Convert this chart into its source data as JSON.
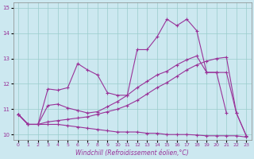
{
  "xlabel": "Windchill (Refroidissement éolien,°C)",
  "background_color": "#cce8f0",
  "line_color": "#993399",
  "grid_color": "#99cccc",
  "xlim": [
    -0.5,
    23.5
  ],
  "ylim": [
    9.8,
    15.2
  ],
  "xticks": [
    0,
    1,
    2,
    3,
    4,
    5,
    6,
    7,
    8,
    9,
    10,
    11,
    12,
    13,
    14,
    15,
    16,
    17,
    18,
    19,
    20,
    21,
    22,
    23
  ],
  "yticks": [
    10,
    11,
    12,
    13,
    14
  ],
  "ytick_extra": 15,
  "line1_x": [
    0,
    1,
    2,
    3,
    4,
    5,
    6,
    7,
    8,
    9,
    10,
    11,
    12,
    13,
    14,
    15,
    16,
    17,
    18,
    19,
    20,
    21
  ],
  "line1_y": [
    10.8,
    10.4,
    10.4,
    11.8,
    11.75,
    11.85,
    12.8,
    12.55,
    12.35,
    11.65,
    11.55,
    11.55,
    13.35,
    13.35,
    13.85,
    14.55,
    14.3,
    14.55,
    14.1,
    12.45,
    12.45,
    10.85
  ],
  "line2_x": [
    0,
    1,
    2,
    3,
    4,
    5,
    6,
    7,
    8,
    9,
    10,
    11,
    12,
    13,
    14,
    15,
    16,
    17,
    18,
    19,
    20,
    21,
    22,
    23
  ],
  "line2_y": [
    10.8,
    10.4,
    10.4,
    11.15,
    11.2,
    11.05,
    10.95,
    10.85,
    10.9,
    11.1,
    11.3,
    11.55,
    11.85,
    12.1,
    12.35,
    12.5,
    12.75,
    12.95,
    13.1,
    12.45,
    12.45,
    12.45,
    10.85,
    9.95
  ],
  "line3_x": [
    0,
    1,
    2,
    3,
    4,
    5,
    6,
    7,
    8,
    9,
    10,
    11,
    12,
    13,
    14,
    15,
    16,
    17,
    18,
    19,
    20,
    21,
    22,
    23
  ],
  "line3_y": [
    10.8,
    10.4,
    10.4,
    10.5,
    10.55,
    10.6,
    10.65,
    10.7,
    10.8,
    10.9,
    11.0,
    11.15,
    11.35,
    11.6,
    11.85,
    12.05,
    12.3,
    12.55,
    12.75,
    12.9,
    13.0,
    13.05,
    10.85,
    9.95
  ],
  "line4_x": [
    0,
    1,
    2,
    3,
    4,
    5,
    6,
    7,
    8,
    9,
    10,
    11,
    12,
    13,
    14,
    15,
    16,
    17,
    18,
    19,
    20,
    21,
    22,
    23
  ],
  "line4_y": [
    10.8,
    10.4,
    10.4,
    10.4,
    10.4,
    10.35,
    10.3,
    10.25,
    10.2,
    10.15,
    10.1,
    10.1,
    10.1,
    10.05,
    10.05,
    10.0,
    10.0,
    10.0,
    9.98,
    9.95,
    9.95,
    9.95,
    9.95,
    9.9
  ]
}
